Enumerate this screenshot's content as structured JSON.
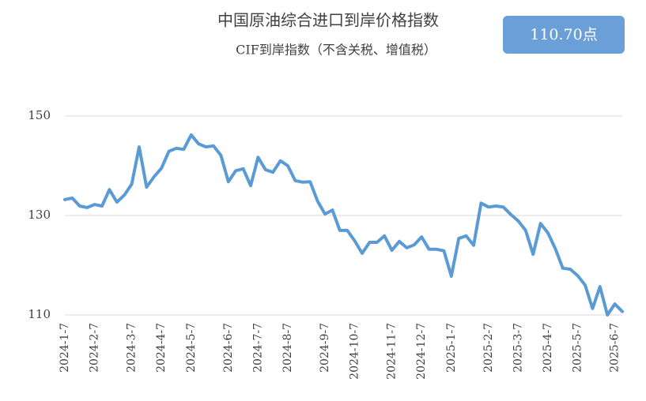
{
  "chart_data": {
    "type": "line",
    "title": "中国原油综合进口到岸价格指数",
    "subtitle": "CIF到岸指数（不含关税、增值税）",
    "badge": "110.70点",
    "categories": [
      "2024-1-7",
      null,
      null,
      null,
      "2024-2-7",
      null,
      null,
      null,
      null,
      "2024-3-7",
      null,
      null,
      null,
      "2024-4-7",
      null,
      null,
      null,
      "2024-5-7",
      null,
      null,
      null,
      null,
      "2024-6-7",
      null,
      null,
      null,
      "2024-7-7",
      null,
      null,
      null,
      "2024-8-7",
      null,
      null,
      null,
      null,
      "2024-9-7",
      null,
      null,
      null,
      "2024-10-7",
      null,
      null,
      null,
      null,
      "2024-11-7",
      null,
      null,
      null,
      "2024-12-7",
      null,
      null,
      null,
      "2025-1-7",
      null,
      null,
      null,
      null,
      "2025-2-7",
      null,
      null,
      null,
      "2025-3-7",
      null,
      null,
      null,
      "2025-4-7",
      null,
      null,
      null,
      "2025-5-7",
      null,
      null,
      null,
      null,
      "2025-6-7",
      null
    ],
    "series": [
      {
        "color": "#5b9bd5",
        "values": [
          133.2,
          133.5,
          131.9,
          131.6,
          132.2,
          131.9,
          135.2,
          132.7,
          134.1,
          136.3,
          143.8,
          135.7,
          137.8,
          139.5,
          142.9,
          143.5,
          143.3,
          146.2,
          144.4,
          143.8,
          144.0,
          142.1,
          136.8,
          139.0,
          139.4,
          136.0,
          141.7,
          139.2,
          138.7,
          141.0,
          140.0,
          137.0,
          136.7,
          136.8,
          132.9,
          130.3,
          131.1,
          127.0,
          127.0,
          124.9,
          122.4,
          124.6,
          124.6,
          125.9,
          123.0,
          124.8,
          123.5,
          124.1,
          125.7,
          123.2,
          123.2,
          122.9,
          117.8,
          125.4,
          125.9,
          124.0,
          132.5,
          131.7,
          131.9,
          131.7,
          130.2,
          128.9,
          127.0,
          122.2,
          128.4,
          126.5,
          123.3,
          119.4,
          119.2,
          117.9,
          116.0,
          111.3,
          115.7,
          110.0,
          112.2,
          110.7
        ]
      }
    ],
    "ylim": [
      110,
      150
    ],
    "yticks": [
      110,
      130,
      150
    ],
    "grid": true
  }
}
